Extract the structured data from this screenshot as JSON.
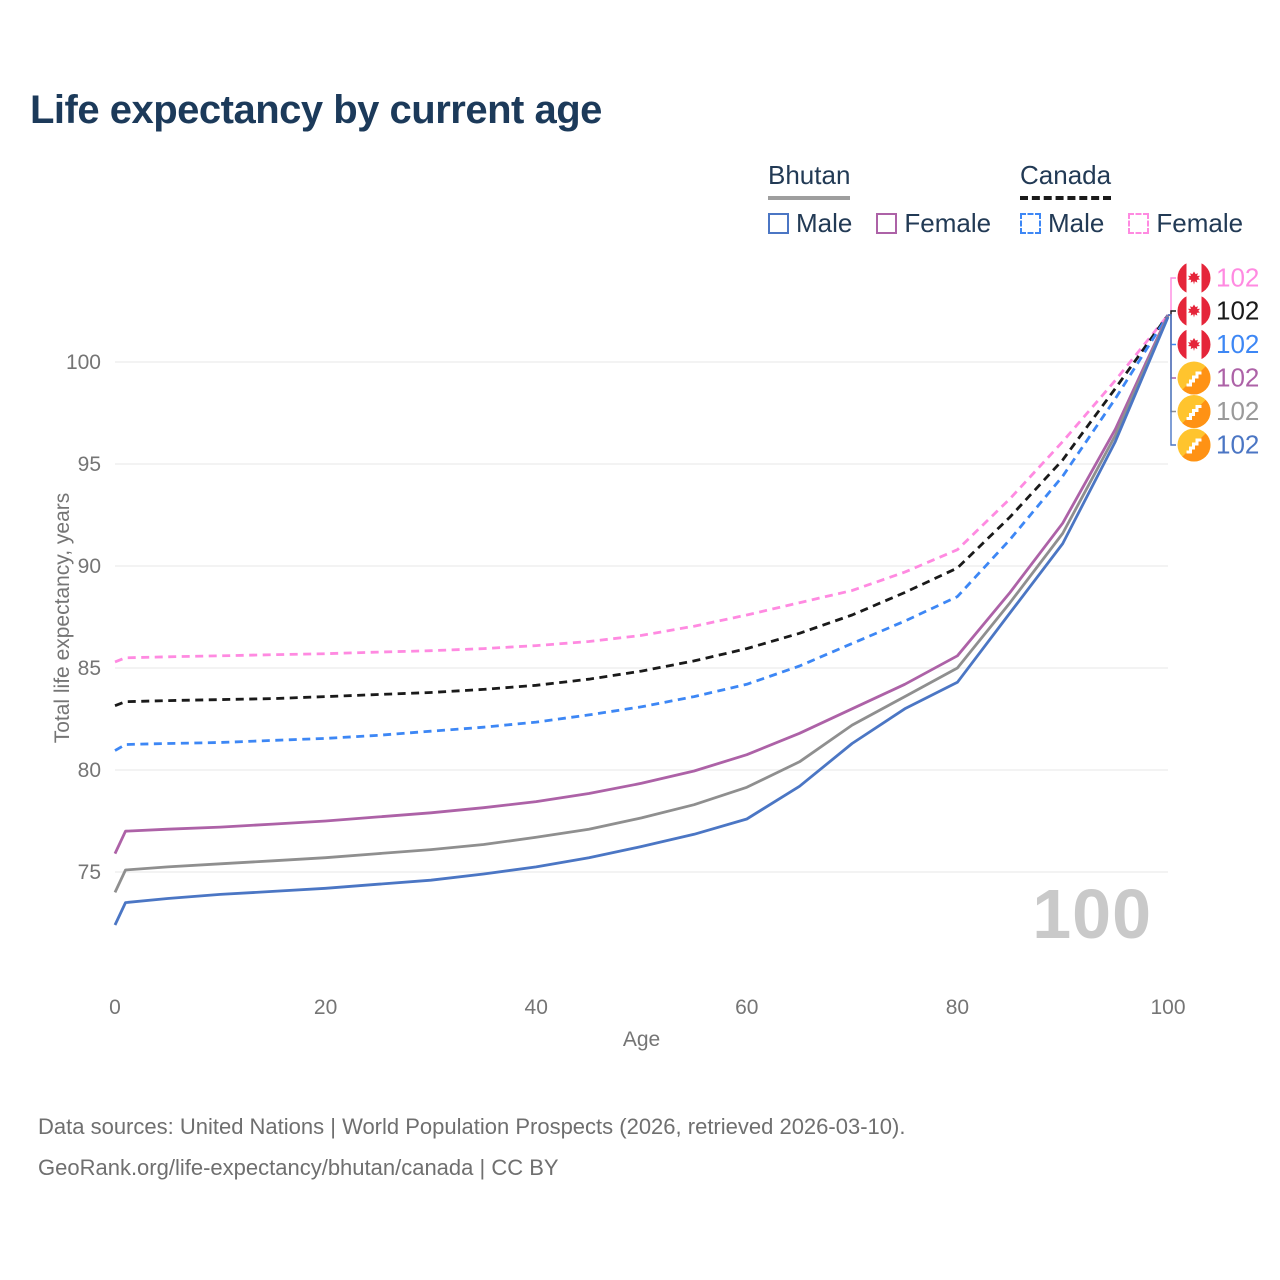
{
  "title": "Life expectancy by current age",
  "watermark": "100",
  "footer": {
    "line1": "Data sources: United Nations | World Population Prospects (2026, retrieved 2026-03-10).",
    "line2": "GeoRank.org/life-expectancy/bhutan/canada | CC BY"
  },
  "colors": {
    "grid": "#ececec",
    "axis_text": "#757575",
    "title_text": "#1c3a5a",
    "legend_text": "#223a55",
    "watermark": "#c9c9c9",
    "canada_flag_red": "#e5253a",
    "bhutan_flag_yellow": "#ffc42e",
    "bhutan_flag_orange": "#ff9214"
  },
  "legend": {
    "groups": [
      {
        "country": "Bhutan",
        "underline_style": "solid",
        "underline_color": "#9e9e9e",
        "items": [
          {
            "label": "Male",
            "color": "#4b76c4",
            "dashed": false
          },
          {
            "label": "Female",
            "color": "#ad62a7",
            "dashed": false
          }
        ]
      },
      {
        "country": "Canada",
        "underline_style": "dashed",
        "underline_color": "#1a1a1a",
        "items": [
          {
            "label": "Male",
            "color": "#3d87f5",
            "dashed": true
          },
          {
            "label": "Female",
            "color": "#ff8ae1",
            "dashed": true
          }
        ]
      }
    ]
  },
  "chart_data": {
    "type": "line",
    "title": "Life expectancy by current age",
    "xlabel": "Age",
    "ylabel": "Total life expectancy, years",
    "xlim": [
      0,
      100
    ],
    "ylim": [
      72,
      103
    ],
    "x_ticks": [
      0,
      20,
      40,
      60,
      80,
      100
    ],
    "y_ticks": [
      75,
      80,
      85,
      90,
      95,
      100
    ],
    "grid": "horizontal-only",
    "legend_position": "top-right",
    "x": [
      0,
      1,
      5,
      10,
      15,
      20,
      25,
      30,
      35,
      40,
      45,
      50,
      55,
      60,
      65,
      70,
      75,
      80,
      85,
      90,
      95,
      100
    ],
    "series": [
      {
        "name": "Canada Female",
        "country": "Canada",
        "sex": "Female",
        "color": "#ff8ae1",
        "dashed": true,
        "flag": "canada",
        "end_label": "102",
        "values": [
          85.3,
          85.5,
          85.55,
          85.6,
          85.65,
          85.7,
          85.78,
          85.85,
          85.95,
          86.1,
          86.3,
          86.6,
          87.05,
          87.6,
          88.2,
          88.8,
          89.7,
          90.8,
          93.3,
          96.1,
          99.1,
          102.3
        ]
      },
      {
        "name": "Canada (both sexes)",
        "country": "Canada",
        "sex": "All",
        "color": "#1a1a1a",
        "dashed": true,
        "flag": "canada",
        "end_label": "102",
        "values": [
          83.15,
          83.35,
          83.4,
          83.45,
          83.5,
          83.6,
          83.7,
          83.8,
          83.95,
          84.15,
          84.45,
          84.85,
          85.35,
          85.95,
          86.7,
          87.6,
          88.7,
          89.9,
          92.4,
          95.2,
          98.7,
          102.3
        ]
      },
      {
        "name": "Canada Male",
        "country": "Canada",
        "sex": "Male",
        "color": "#3d87f5",
        "dashed": true,
        "flag": "canada",
        "end_label": "102",
        "values": [
          80.95,
          81.25,
          81.3,
          81.35,
          81.45,
          81.55,
          81.7,
          81.9,
          82.1,
          82.35,
          82.7,
          83.1,
          83.6,
          84.2,
          85.1,
          86.2,
          87.3,
          88.5,
          91.3,
          94.4,
          98.2,
          102.3
        ]
      },
      {
        "name": "Bhutan Female",
        "country": "Bhutan",
        "sex": "Female",
        "color": "#ad62a7",
        "dashed": false,
        "flag": "bhutan",
        "end_label": "102",
        "values": [
          75.9,
          77.0,
          77.1,
          77.2,
          77.35,
          77.5,
          77.7,
          77.9,
          78.15,
          78.45,
          78.85,
          79.35,
          79.95,
          80.75,
          81.8,
          83.0,
          84.2,
          85.6,
          88.7,
          92.1,
          96.7,
          102.3
        ]
      },
      {
        "name": "Bhutan (both sexes)",
        "country": "Bhutan",
        "sex": "All",
        "color": "#8f8f8f",
        "dashed": false,
        "flag": "bhutan",
        "end_label": "102",
        "label_color": "#9a9a9a",
        "values": [
          74.0,
          75.1,
          75.25,
          75.4,
          75.55,
          75.7,
          75.9,
          76.1,
          76.35,
          76.7,
          77.1,
          77.65,
          78.3,
          79.15,
          80.4,
          82.2,
          83.6,
          85.0,
          88.2,
          91.6,
          96.4,
          102.25
        ]
      },
      {
        "name": "Bhutan Male",
        "country": "Bhutan",
        "sex": "Male",
        "color": "#4b76c4",
        "dashed": false,
        "flag": "bhutan",
        "end_label": "102",
        "values": [
          72.4,
          73.5,
          73.7,
          73.9,
          74.05,
          74.2,
          74.4,
          74.6,
          74.9,
          75.25,
          75.7,
          76.25,
          76.85,
          77.6,
          79.2,
          81.3,
          83.0,
          84.3,
          87.7,
          91.1,
          96.1,
          102.2
        ]
      }
    ]
  }
}
